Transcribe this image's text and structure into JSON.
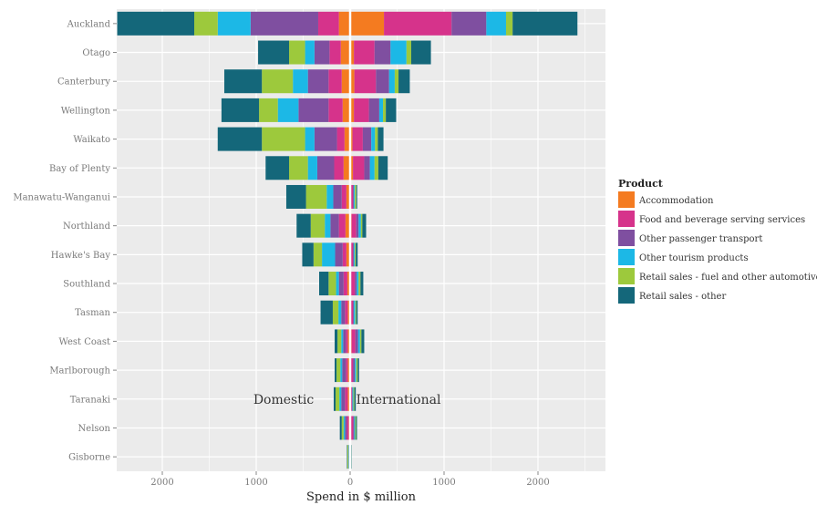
{
  "chart_data": {
    "type": "bar",
    "orientation": "horizontal",
    "layout": "diverging stacked (domestic left, international right)",
    "xlabel": "Spend in $ million",
    "xticks": [
      2000,
      1000,
      0,
      1000,
      2000
    ],
    "xlim": [
      -2500,
      2500
    ],
    "grid": true,
    "legend_position": "right",
    "legend_title": "Product",
    "sides": [
      "Domestic",
      "International"
    ],
    "categories": [
      "Auckland",
      "Otago",
      "Canterbury",
      "Wellington",
      "Waikato",
      "Bay of Plenty",
      "Manawatu-Wanganui",
      "Northland",
      "Hawke's Bay",
      "Southland",
      "Tasman",
      "West Coast",
      "Marlborough",
      "Taranaki",
      "Nelson",
      "Gisborne"
    ],
    "series": [
      {
        "name": "Accommodation",
        "color": "#f47b20",
        "domestic": [
          120,
          100,
          90,
          80,
          60,
          70,
          40,
          50,
          40,
          30,
          25,
          25,
          25,
          25,
          15,
          5
        ],
        "international": [
          360,
          40,
          45,
          40,
          25,
          30,
          10,
          15,
          10,
          10,
          10,
          15,
          10,
          5,
          8,
          3
        ]
      },
      {
        "name": "Food and beverage serving services",
        "color": "#d6338b",
        "domestic": [
          220,
          120,
          140,
          150,
          80,
          100,
          50,
          70,
          40,
          40,
          30,
          20,
          20,
          30,
          20,
          5
        ],
        "international": [
          720,
          220,
          230,
          160,
          110,
          120,
          20,
          50,
          20,
          40,
          20,
          40,
          20,
          15,
          25,
          5
        ]
      },
      {
        "name": "Other passenger transport",
        "color": "#7f4fa0",
        "domestic": [
          720,
          160,
          220,
          320,
          240,
          180,
          90,
          90,
          80,
          50,
          40,
          30,
          40,
          40,
          20,
          5
        ],
        "international": [
          370,
          170,
          140,
          110,
          90,
          60,
          10,
          25,
          10,
          20,
          10,
          30,
          20,
          5,
          10,
          2
        ]
      },
      {
        "name": "Other tourism products",
        "color": "#1cb8e6",
        "domestic": [
          350,
          100,
          160,
          220,
          100,
          100,
          70,
          60,
          140,
          30,
          30,
          20,
          20,
          20,
          15,
          5
        ],
        "international": [
          210,
          170,
          60,
          40,
          40,
          50,
          10,
          25,
          10,
          20,
          15,
          20,
          15,
          10,
          10,
          2
        ]
      },
      {
        "name": "Retail sales - fuel and other automotive",
        "color": "#9dc93c",
        "domestic": [
          250,
          170,
          330,
          200,
          460,
          200,
          220,
          150,
          90,
          80,
          60,
          40,
          40,
          40,
          20,
          10
        ],
        "international": [
          70,
          50,
          40,
          30,
          30,
          40,
          15,
          15,
          10,
          20,
          10,
          15,
          15,
          10,
          10,
          2
        ]
      },
      {
        "name": "Retail sales - other",
        "color": "#14677a",
        "domestic": [
          820,
          330,
          400,
          400,
          470,
          250,
          210,
          150,
          120,
          100,
          130,
          30,
          20,
          20,
          20,
          5
        ],
        "international": [
          690,
          210,
          120,
          110,
          60,
          100,
          10,
          40,
          20,
          30,
          15,
          30,
          15,
          15,
          10,
          3
        ]
      }
    ],
    "annotations": [
      "Domestic",
      "International"
    ]
  }
}
